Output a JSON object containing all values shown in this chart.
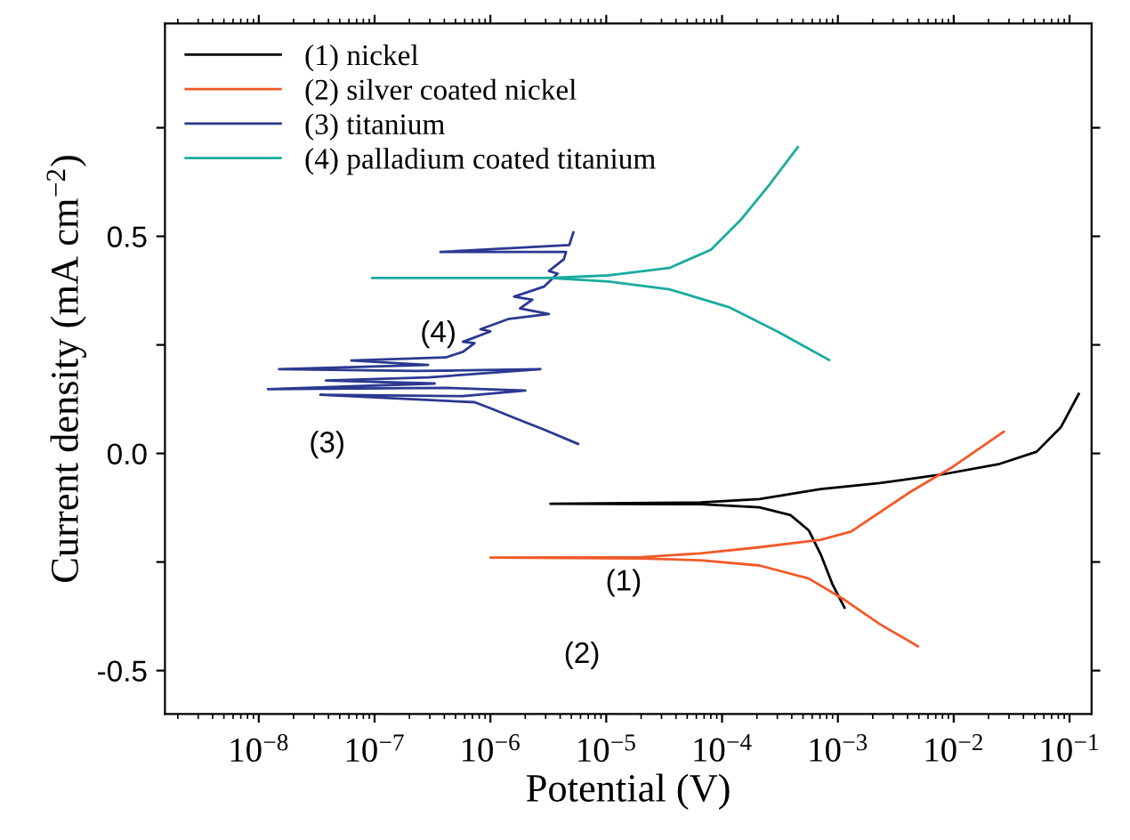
{
  "chart_data": {
    "type": "line",
    "xlabel": "Potential (V)",
    "ylabel": "Current density (mA cm$^{−2}$)",
    "log": "x",
    "xlim": [
      1.55e-09,
      0.155
    ],
    "xticks": [
      {
        "value": 1e-08,
        "label": "10$^{−8}$"
      },
      {
        "value": 1e-07,
        "label": "10$^{−7}$"
      },
      {
        "value": 1e-06,
        "label": "10$^{−6}$"
      },
      {
        "value": 1e-05,
        "label": "10$^{−5}$"
      },
      {
        "value": 0.0001,
        "label": "10$^{−4}$"
      },
      {
        "value": 0.001,
        "label": "10$^{−3}$"
      },
      {
        "value": 0.01,
        "label": "10$^{−2}$"
      },
      {
        "value": 0.1,
        "label": "10$^{−1}$"
      }
    ],
    "ylim": [
      -0.6,
      0.99
    ],
    "yticks": [
      {
        "value": -0.5,
        "label": "-0.5"
      },
      {
        "value": -0.25,
        "label": null
      },
      {
        "value": 0,
        "label": "0.0"
      },
      {
        "value": 0.25,
        "label": null
      },
      {
        "value": 0.5,
        "label": "0.5"
      },
      {
        "value": 0.75,
        "label": null
      }
    ],
    "grid": false,
    "legend": "top left",
    "marker": "none",
    "line_style": "solid",
    "series": [
      {
        "name": "(1) nickel",
        "color": "#000000",
        "x": [
          0.00114,
          0.0009,
          0.00071,
          0.00056,
          0.00039,
          0.00021,
          6.5e-05,
          3.3e-06,
          6.5e-05,
          0.00021,
          0.00071,
          0.0023,
          0.0077,
          0.025,
          0.052,
          0.084,
          0.12
        ],
        "values": [
          -0.355,
          -0.302,
          -0.232,
          -0.177,
          -0.142,
          -0.124,
          -0.117,
          -0.116,
          -0.113,
          -0.105,
          -0.082,
          -0.068,
          -0.049,
          -0.024,
          0.004,
          0.06,
          0.137
        ]
      },
      {
        "name": "(2) silver coated nickel",
        "color": "#f15a29",
        "x": [
          0.0049,
          0.0023,
          0.00114,
          0.00056,
          0.00021,
          6.5e-05,
          2e-05,
          1e-06,
          2e-05,
          6.5e-05,
          0.00021,
          0.00071,
          0.0013,
          0.0042,
          0.0098,
          0.027
        ],
        "values": [
          -0.444,
          -0.393,
          -0.337,
          -0.288,
          -0.258,
          -0.246,
          -0.242,
          -0.24,
          -0.239,
          -0.23,
          -0.216,
          -0.199,
          -0.18,
          -0.089,
          -0.031,
          0.05
        ]
      },
      {
        "name": "(3) titanium",
        "color": "#2b3990",
        "x": [
          5.7e-06,
          2.9e-06,
          1.6e-06,
          1e-06,
          7.3e-07,
          3.4e-08,
          5.8e-07,
          2e-06,
          4.1e-07,
          1.2e-08,
          3.3e-07,
          3.8e-08,
          2.9e-07,
          2.7e-06,
          2.3e-07,
          1.5e-08,
          2.9e-07,
          6.3e-08,
          4.1e-07,
          5.8e-07,
          7.3e-07,
          5.8e-07,
          1e-06,
          8.2e-07,
          1.45e-06,
          3.2e-06,
          1.8e-06,
          2.3e-06,
          1.6e-06,
          2.9e-06,
          3.8e-06,
          3.2e-06,
          4.3e-06,
          4.5e-06,
          3.7e-07,
          4.8e-06,
          5.2e-06
        ],
        "values": [
          0.022,
          0.055,
          0.082,
          0.104,
          0.118,
          0.135,
          0.132,
          0.145,
          0.151,
          0.148,
          0.161,
          0.168,
          0.175,
          0.194,
          0.19,
          0.194,
          0.204,
          0.214,
          0.221,
          0.234,
          0.254,
          0.257,
          0.281,
          0.286,
          0.31,
          0.321,
          0.334,
          0.354,
          0.361,
          0.384,
          0.414,
          0.42,
          0.447,
          0.464,
          0.464,
          0.48,
          0.509
        ]
      },
      {
        "name": "(4) palladium coated titanium",
        "color": "#1aaba0",
        "x": [
          0.00084,
          0.0003,
          0.000114,
          3.5e-05,
          1.05e-05,
          3.2e-06,
          9.5e-08,
          3.2e-06,
          1.05e-05,
          3.5e-05,
          8e-05,
          0.000145,
          0.00026,
          0.00045
        ],
        "values": [
          0.215,
          0.281,
          0.337,
          0.378,
          0.396,
          0.404,
          0.404,
          0.404,
          0.41,
          0.427,
          0.469,
          0.538,
          0.621,
          0.705
        ]
      }
    ],
    "annotations": [
      "(1)",
      "(2)",
      "(3)",
      "(4)"
    ]
  }
}
